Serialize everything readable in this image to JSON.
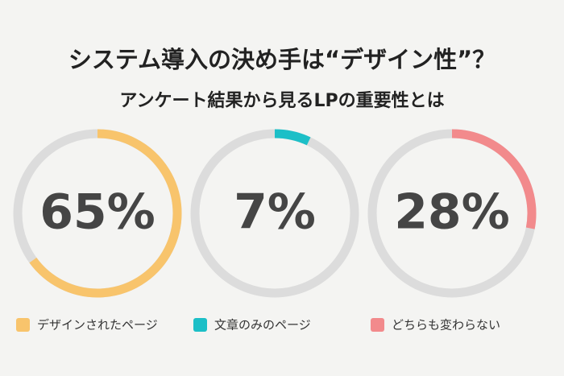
{
  "title": "システム導入の決め手は“デザイン性”？",
  "subtitle": "アンケート結果から見るLPの重要性とは",
  "chart_data": [
    {
      "type": "donut",
      "series": [
        {
          "name": "デザインされたページ",
          "color": "#f8c46c",
          "values": [
            65
          ],
          "value_labels": [
            "65%"
          ]
        }
      ]
    },
    {
      "type": "donut",
      "series": [
        {
          "name": "文章のみのページ",
          "color": "#1cbfc7",
          "values": [
            7
          ],
          "value_labels": [
            "7%"
          ]
        }
      ]
    },
    {
      "type": "donut",
      "series": [
        {
          "name": "どちらも変わらない",
          "color": "#f28a8c",
          "values": [
            28
          ],
          "value_labels": [
            "28%"
          ]
        }
      ]
    }
  ]
}
